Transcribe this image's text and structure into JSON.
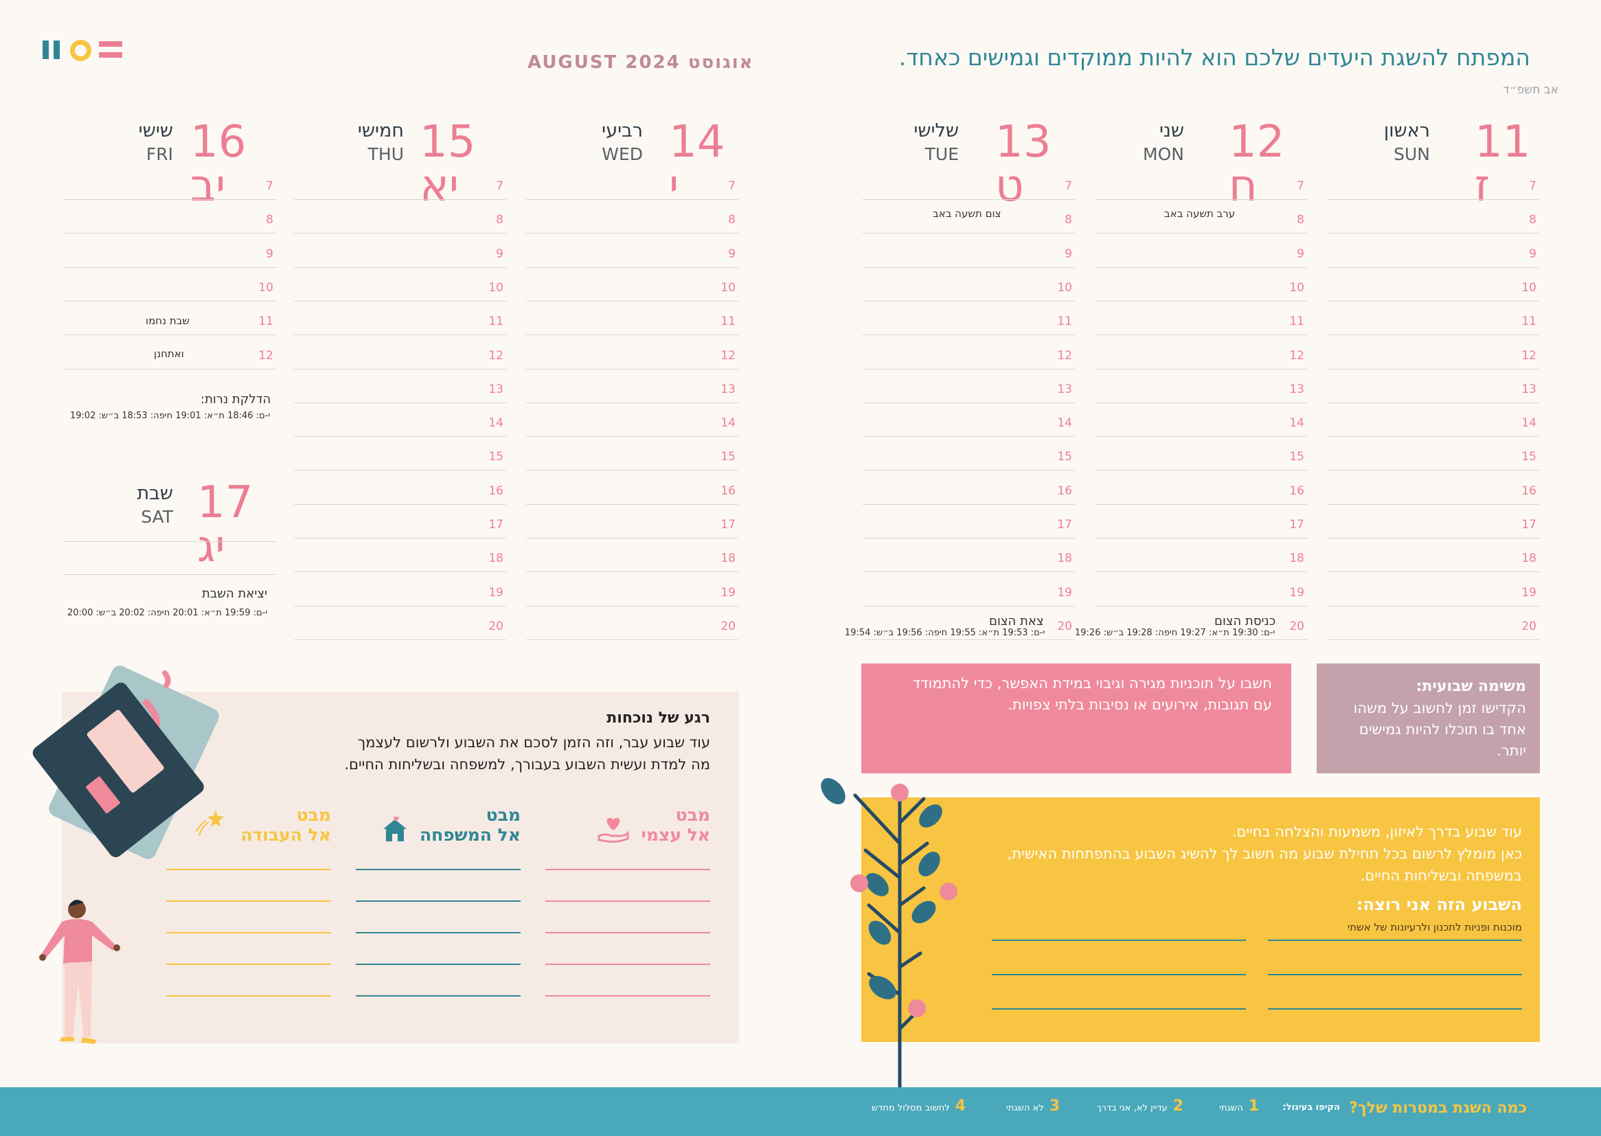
{
  "header": {
    "month_title": "AUGUST 2024 אוגוסט",
    "slogan": "המפתח להשגת היעדים שלכם הוא להיות ממוקדים וגמישים כאחד.",
    "hebrew_month": "אב תשפ״ד"
  },
  "hours": [
    "7",
    "8",
    "9",
    "10",
    "11",
    "12",
    "13",
    "14",
    "15",
    "16",
    "17",
    "18",
    "19",
    "20"
  ],
  "days": {
    "sun": {
      "num": "11",
      "heb": "ז",
      "name": "ראשון",
      "eng": "SUN"
    },
    "mon": {
      "num": "12",
      "heb": "ח",
      "name": "שני",
      "eng": "MON",
      "event": "ערב תשעה באב"
    },
    "tue": {
      "num": "13",
      "heb": "ט",
      "name": "שלישי",
      "eng": "TUE",
      "event": "צום תשעה באב"
    },
    "wed": {
      "num": "14",
      "heb": "י",
      "name": "רביעי",
      "eng": "WED"
    },
    "thu": {
      "num": "15",
      "heb": "יא",
      "name": "חמישי",
      "eng": "THU"
    },
    "fri": {
      "num": "16",
      "heb": "יב",
      "name": "שישי",
      "eng": "FRI",
      "event1": "שבת נחמו",
      "event2": "ואתחנן"
    },
    "sat": {
      "num": "17",
      "heb": "יג",
      "name": "שבת",
      "eng": "SAT"
    }
  },
  "fast": {
    "start_label": "כניסת הצום",
    "start_times": "י-ם: 19:30  ת״א: 19:27  חיפה: 19:28  ב״ש: 19:26",
    "end_label": "צאת הצום",
    "end_times": "י-ם: 19:53  ת״א: 19:55  חיפה: 19:56  ב״ש: 19:54"
  },
  "shabbat": {
    "candle_label": "הדלקת נרות:",
    "candle_times": "י-ם: 18:46  ת״א: 19:01  חיפה: 18:53  ב״ש: 19:02",
    "end_label": "יציאת השבת",
    "end_times": "י-ם: 19:59  ת״א: 20:01  חיפה: 20:02  ב״ש: 20:00"
  },
  "weekly_task": {
    "title": "משימה שבועית:",
    "text": "הקדישו זמן לחשוב על משהו אחד בו תוכלו להיות גמישים יותר.",
    "pink_text": "חשבו על תוכניות מגירה וגיבוי במידת האפשר, כדי להתמודד עם תגובות, אירועים או נסיבות בלתי צפויות."
  },
  "yellow_box": {
    "line1": "עוד שבוע בדרך לאיזון, משמעות והצלחה בחיים.",
    "line2": "כאן מומלץ לרשום בכל תחילת שבוע מה חשוב לך להשיג השבוע בהתפתחות האישית, במשפחה ובשליחות החיים.",
    "want_title": "השבוע הזה אני רוצה:",
    "want_sub": "מוכנות ופניות לתכנון ולרעיונות של אשתי"
  },
  "reflection": {
    "title": "רגע של נוכחות",
    "line1": "עוד שבוע עבר, וזה הזמן לסכם את השבוע ולרשום לעצמך",
    "line2": "מה למדת ועשית השבוע בעבורך, למשפחה ובשליחות החיים.",
    "cols": [
      {
        "top": "מבט",
        "bottom": "אל עצמי",
        "icon": "heart-hand-icon"
      },
      {
        "top": "מבט",
        "bottom": "אל המשפחה",
        "icon": "house-icon"
      },
      {
        "top": "מבט",
        "bottom": "אל העבודה",
        "icon": "star-icon"
      }
    ]
  },
  "footer": {
    "question": "כמה השגת במטרות שלך?",
    "mark": "הקיפו בעיגול:",
    "opt1_num": "1",
    "opt1": "השגתי",
    "opt2_num": "2",
    "opt2": "עדיין לא, אני בדרך",
    "opt3_num": "3",
    "opt3": "לא השגתי",
    "opt4_num": "4",
    "opt4": "לחשוב מסלול מחדש"
  },
  "colors": {
    "pink": "#ec7e93",
    "teal": "#2f8796",
    "yellow": "#f7c542",
    "mauve": "#c3a2ab",
    "footer": "#4aa8bb"
  }
}
